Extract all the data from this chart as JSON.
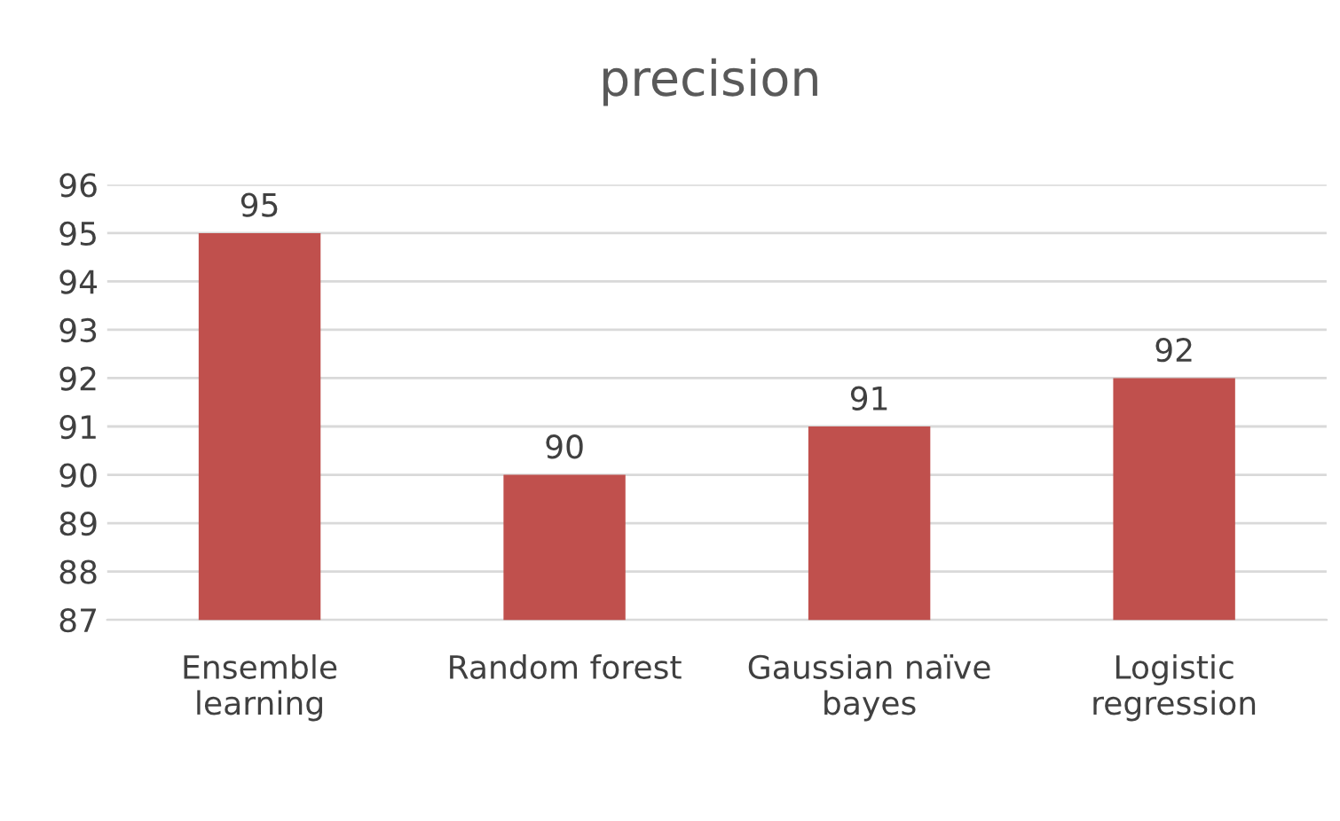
{
  "chart_data": {
    "type": "bar",
    "title": "precision",
    "categories": [
      "Ensemble\nlearning",
      "Random forest",
      "Gaussian naïve\nbayes",
      "Logistic\nregression"
    ],
    "values": [
      95,
      90,
      91,
      92
    ],
    "color": "#c0504d",
    "ylim": [
      87,
      96
    ],
    "yticks": [
      87,
      88,
      89,
      90,
      91,
      92,
      93,
      94,
      95,
      96
    ],
    "grid": "y",
    "data_labels": true
  }
}
